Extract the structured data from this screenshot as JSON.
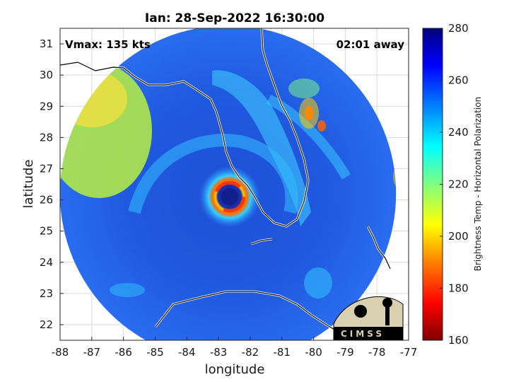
{
  "chart_data": {
    "type": "heatmap",
    "title": "Ian: 28-Sep-2022 16:30:00",
    "xlabel": "longitude",
    "ylabel": "latitude",
    "xlim": [
      -88,
      -77
    ],
    "ylim": [
      21.5,
      31.5
    ],
    "xticks": [
      "-88",
      "-87",
      "-86",
      "-85",
      "-84",
      "-83",
      "-82",
      "-81",
      "-80",
      "-79",
      "-78",
      "-77"
    ],
    "yticks": [
      "22",
      "23",
      "24",
      "25",
      "26",
      "27",
      "28",
      "29",
      "30",
      "31"
    ],
    "grid": true,
    "annotations": {
      "vmax": "Vmax: 135 kts",
      "time_away": "02:01 away"
    },
    "colorbar": {
      "label": "Brightness Temp - Horizontal Polarization",
      "range": [
        160,
        280
      ],
      "ticks": [
        "160",
        "180",
        "200",
        "220",
        "240",
        "260",
        "280"
      ],
      "colors": [
        "#800000",
        "#ff0000",
        "#ff8000",
        "#ffff00",
        "#80ff80",
        "#00ffff",
        "#0080ff",
        "#0000ff",
        "#000080"
      ]
    },
    "swath": {
      "center_lon": -82.7,
      "center_lat": 26.2,
      "radius_deg": 5.4
    },
    "storm_eye": {
      "lon": -82.65,
      "lat": 26.1
    },
    "logo_text": "CIMSS"
  }
}
